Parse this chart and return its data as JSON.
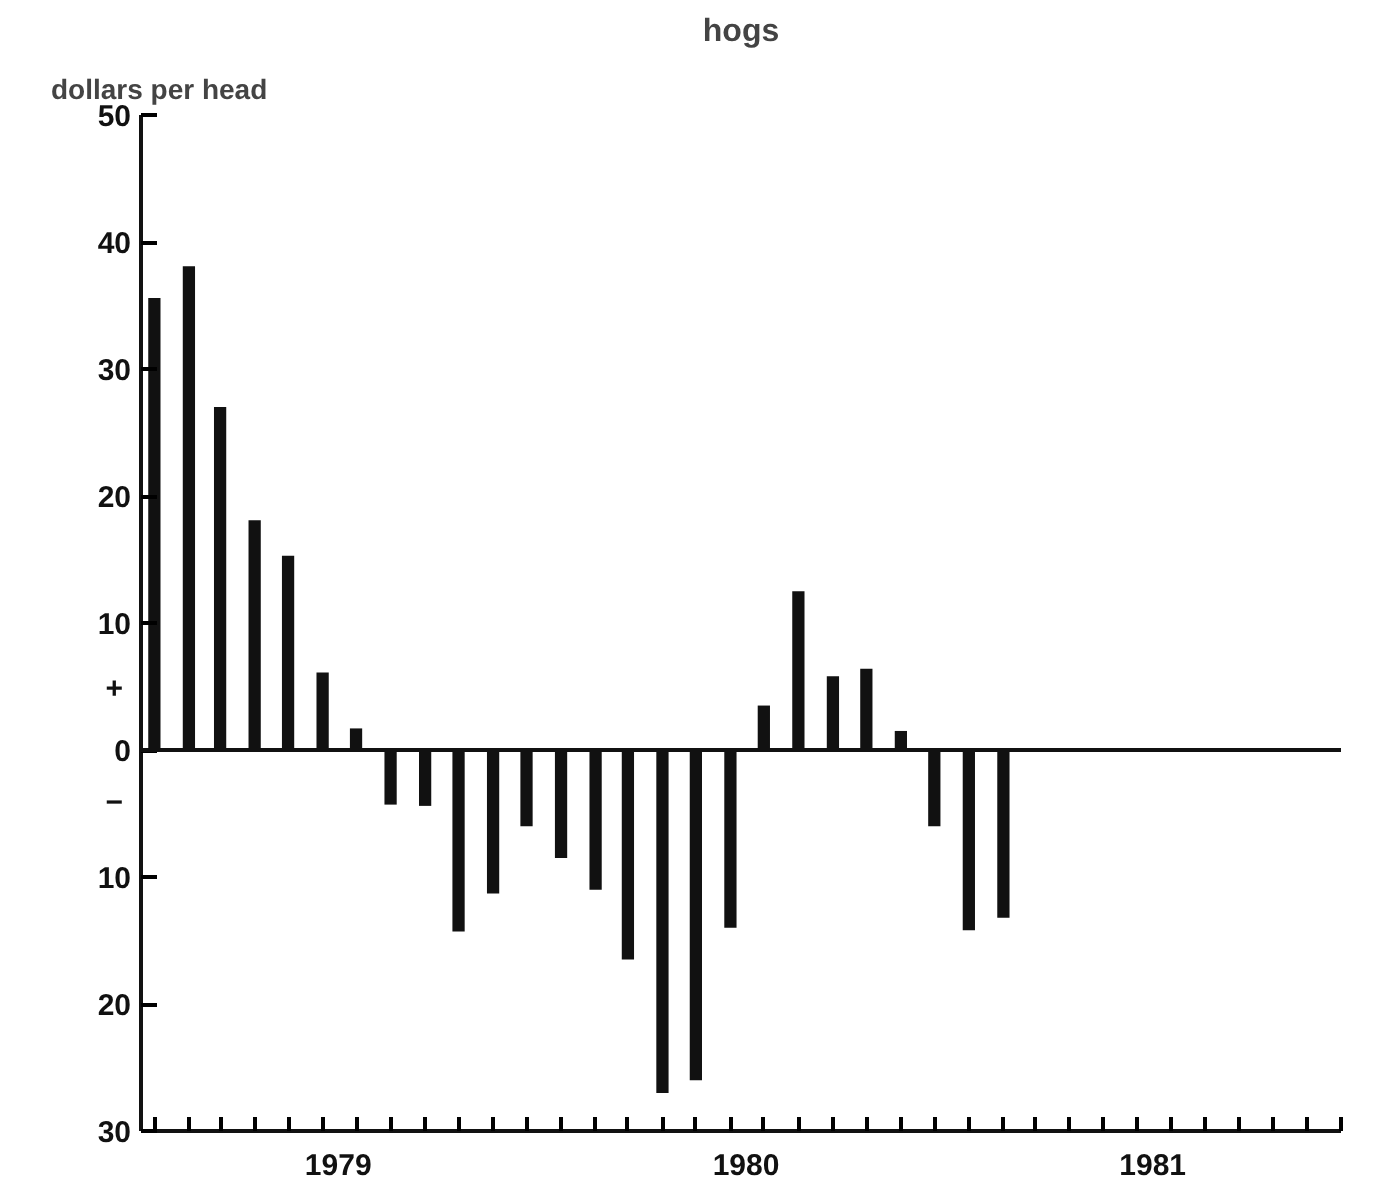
{
  "chart_data": {
    "type": "bar",
    "title": "hogs",
    "ylabel": "dollars per head",
    "x": [
      "1979-01",
      "1979-02",
      "1979-03",
      "1979-04",
      "1979-05",
      "1979-06",
      "1979-07",
      "1979-08",
      "1979-09",
      "1979-10",
      "1979-11",
      "1979-12",
      "1980-01",
      "1980-02",
      "1980-03",
      "1980-04",
      "1980-05",
      "1980-06",
      "1980-07",
      "1980-08",
      "1980-09",
      "1980-10",
      "1980-11",
      "1980-12",
      "1981-01",
      "1981-02"
    ],
    "values": [
      35.6,
      38.1,
      27,
      18.1,
      15.3,
      6.1,
      1.7,
      -4.3,
      -4.4,
      -14.3,
      -11.3,
      -6,
      -8.5,
      -11,
      -16.5,
      -27,
      -26,
      -14,
      3.5,
      12.5,
      5.8,
      6.4,
      1.5,
      -6,
      -14.2,
      -13.2
    ],
    "color": "#111111",
    "xlim": [
      "1978-12-20",
      "1981-12-01"
    ],
    "ylim": [
      -30,
      50
    ],
    "xticks": [
      {
        "value": "1979-06-15",
        "label": "1979"
      },
      {
        "value": "1980-06-15",
        "label": "1980"
      },
      {
        "value": "1981-06-15",
        "label": "1981"
      },
      {
        "value": "1979-01",
        "label": null
      },
      {
        "value": "1979-02",
        "label": null
      },
      {
        "value": "1979-03",
        "label": null
      },
      {
        "value": "1979-04",
        "label": null
      },
      {
        "value": "1979-05",
        "label": null
      },
      {
        "value": "1979-06",
        "label": null
      },
      {
        "value": "1979-07",
        "label": null
      },
      {
        "value": "1979-08",
        "label": null
      },
      {
        "value": "1979-09",
        "label": null
      },
      {
        "value": "1979-10",
        "label": null
      },
      {
        "value": "1979-11",
        "label": null
      },
      {
        "value": "1979-12",
        "label": null
      },
      {
        "value": "1980-01",
        "label": null
      },
      {
        "value": "1980-02",
        "label": null
      },
      {
        "value": "1980-03",
        "label": null
      },
      {
        "value": "1980-04",
        "label": null
      },
      {
        "value": "1980-05",
        "label": null
      },
      {
        "value": "1980-06",
        "label": null
      },
      {
        "value": "1980-07",
        "label": null
      },
      {
        "value": "1980-08",
        "label": null
      },
      {
        "value": "1980-09",
        "label": null
      },
      {
        "value": "1980-10",
        "label": null
      },
      {
        "value": "1980-11",
        "label": null
      },
      {
        "value": "1980-12",
        "label": null
      },
      {
        "value": "1981-01",
        "label": null
      },
      {
        "value": "1981-02",
        "label": null
      },
      {
        "value": "1981-03",
        "label": null
      },
      {
        "value": "1981-04",
        "label": null
      },
      {
        "value": "1981-05",
        "label": null
      },
      {
        "value": "1981-06",
        "label": null
      },
      {
        "value": "1981-07",
        "label": null
      },
      {
        "value": "1981-08",
        "label": null
      },
      {
        "value": "1981-09",
        "label": null
      },
      {
        "value": "1981-10",
        "label": null
      },
      {
        "value": "1981-11",
        "label": null
      },
      {
        "value": "1981-12",
        "label": null
      }
    ],
    "yticks": [
      {
        "value": -30,
        "label": "30"
      },
      {
        "value": -20,
        "label": "20"
      },
      {
        "value": -10,
        "label": "10"
      },
      0,
      10,
      20,
      30,
      40,
      50
    ],
    "ref_lines": [
      {
        "axis": "y",
        "value": 0,
        "color": "#111111"
      }
    ],
    "annotations": [
      "+",
      "−"
    ],
    "grid": false
  }
}
